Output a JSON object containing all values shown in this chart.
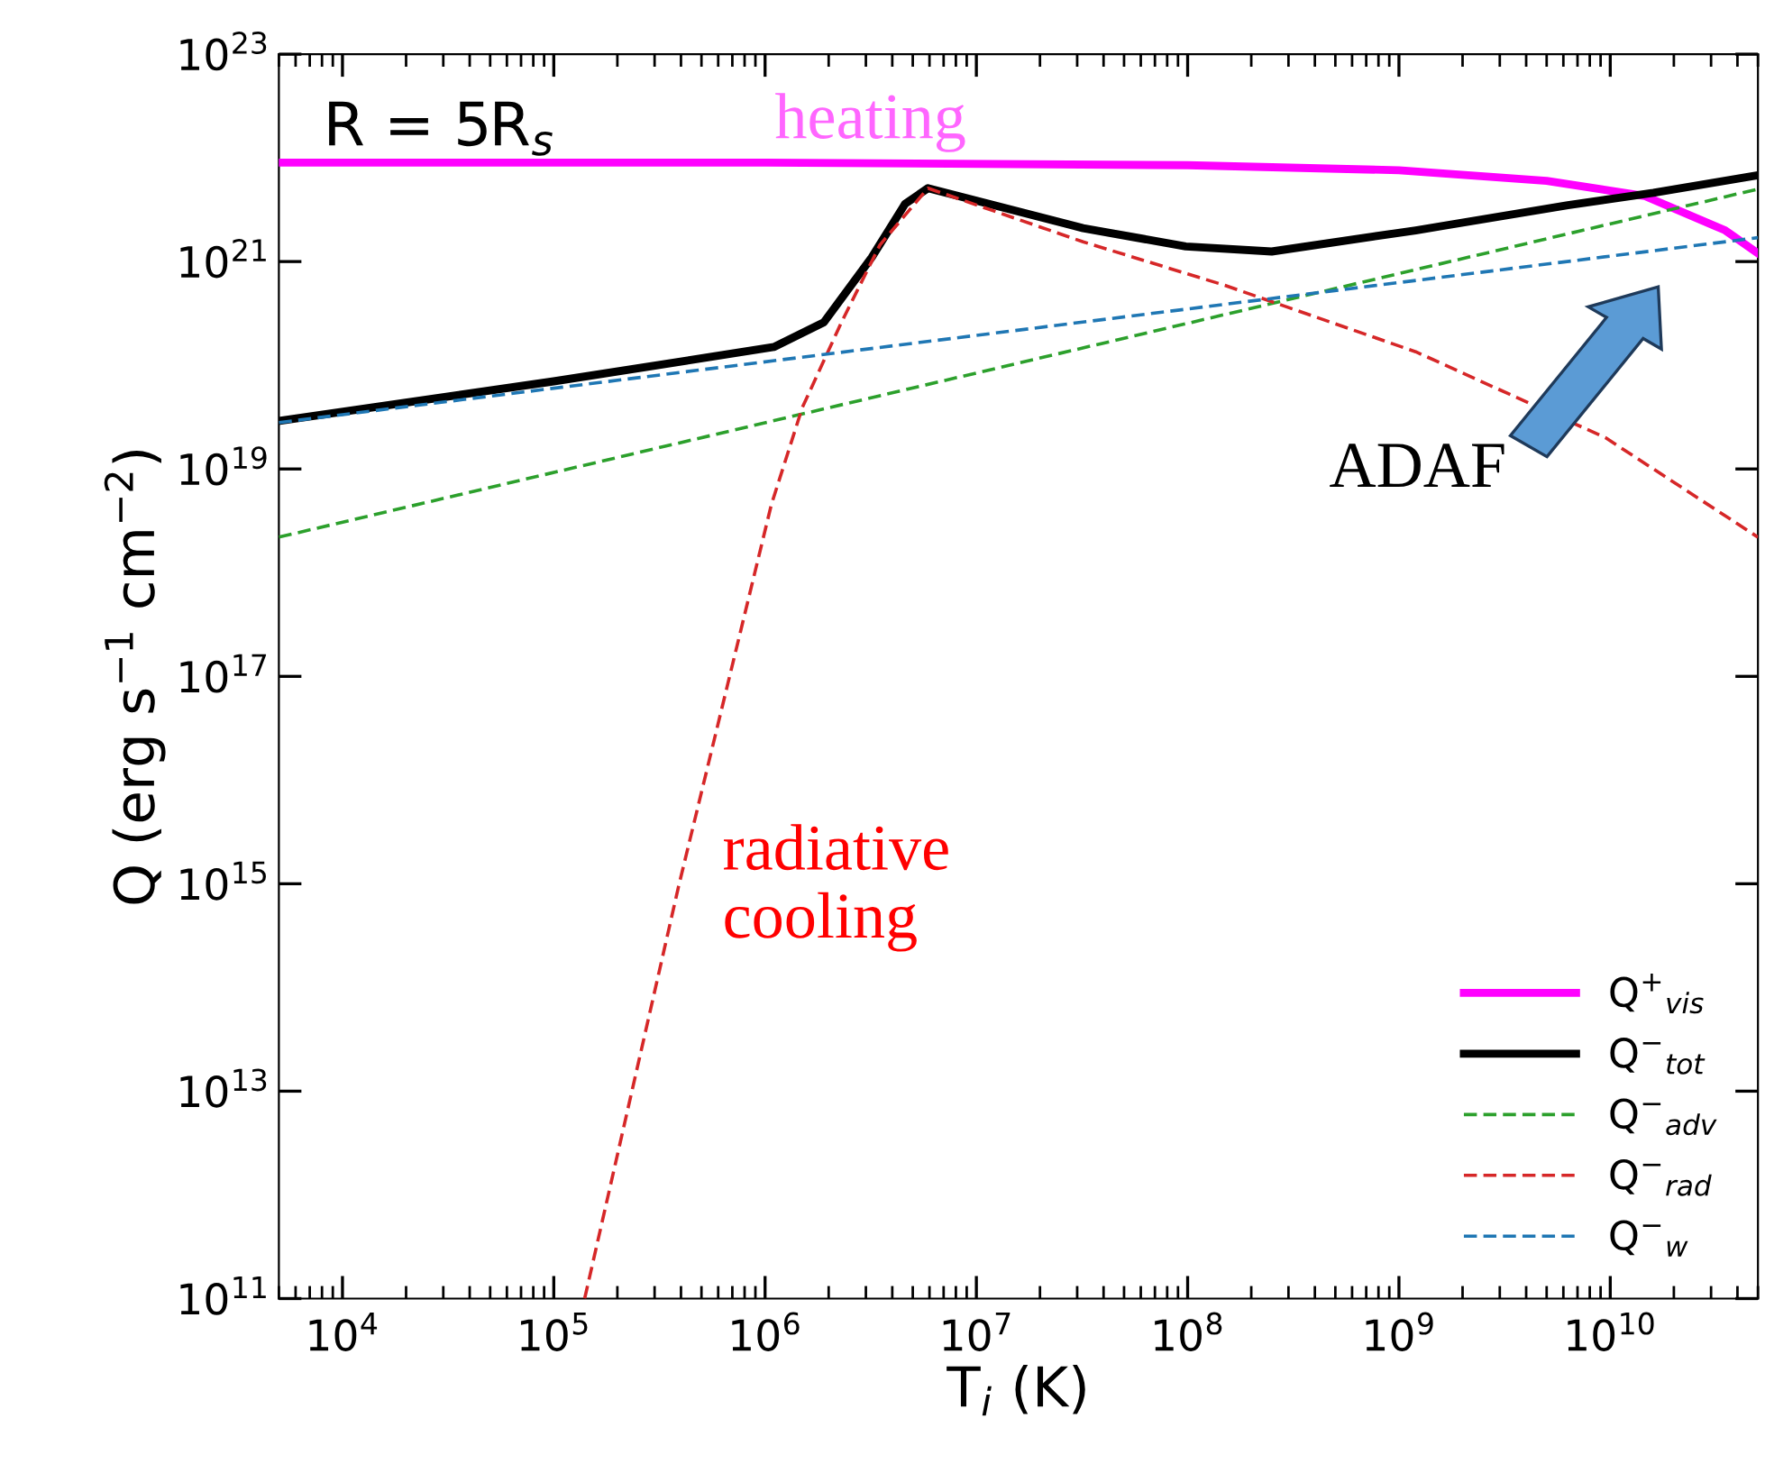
{
  "chart_data": {
    "type": "line",
    "xlabel": "T$_{i}$ (K)",
    "ylabel": "Q (erg s$^{−1}$ cm$^{−2}$)",
    "log": "xy",
    "xlim": [
      5000,
      50000000000
    ],
    "ylim": [
      100000000000.0,
      1e+23
    ],
    "xticks": [
      {
        "value": 10000.0,
        "label": "10$^{4}$"
      },
      {
        "value": 100000.0,
        "label": "10$^{5}$"
      },
      {
        "value": 1000000.0,
        "label": "10$^{6}$"
      },
      {
        "value": 10000000.0,
        "label": "10$^{7}$"
      },
      {
        "value": 100000000.0,
        "label": "10$^{8}$"
      },
      {
        "value": 1000000000.0,
        "label": "10$^{9}$"
      },
      {
        "value": 10000000000.0,
        "label": "10$^{10}$"
      }
    ],
    "yticks": [
      {
        "value": 100000000000.0,
        "label": "10$^{11}$"
      },
      {
        "value": 10000000000000.0,
        "label": "10$^{13}$"
      },
      {
        "value": 1000000000000000.0,
        "label": "10$^{15}$"
      },
      {
        "value": 1e+17,
        "label": "10$^{17}$"
      },
      {
        "value": 1e+19,
        "label": "10$^{19}$"
      },
      {
        "value": 1e+21,
        "label": "10$^{21}$"
      },
      {
        "value": 1e+23,
        "label": "10$^{23}$"
      }
    ],
    "grid": false,
    "legend": "bottom right",
    "marker": "none",
    "series": [
      {
        "name": "Q$^{+}$$_{vis}$",
        "color": "#ff00ff",
        "line_style": "solid",
        "x": [
          5000.0,
          1000000.0,
          100000000.0,
          1000000000.0,
          5000000000.0,
          14500000000.0,
          35000000000.0,
          50000000000.0
        ],
        "values": [
          9e+21,
          9e+21,
          8.5e+21,
          7.6e+21,
          6e+21,
          4.3e+21,
          2e+21,
          1.2e+21
        ]
      },
      {
        "name": "Q$^{−}$$_{tot}$",
        "color": "#000000",
        "line_style": "solid",
        "x": [
          5000.0,
          100000.0,
          1100000.0,
          1900000.0,
          3200000.0,
          4600000.0,
          5900000.0,
          32000000.0,
          98000000.0,
          250000000.0,
          1200000000.0,
          6300000000.0,
          16000000000.0,
          50000000000.0
        ],
        "values": [
          2.9e+19,
          7e+19,
          1.5e+20,
          2.6e+20,
          1.1e+21,
          3.6e+21,
          5.1e+21,
          2.1e+21,
          1.4e+21,
          1.25e+21,
          2e+21,
          3.5e+21,
          4.6e+21,
          6.8e+21
        ]
      },
      {
        "name": "Q$^{−}$$_{adv}$",
        "color": "#2ca02c",
        "line_style": "dashed",
        "x": [
          5000.0,
          50000000000.0
        ],
        "values": [
          2.2e+18,
          5e+21
        ]
      },
      {
        "name": "Q$^{−}$$_{rad}$",
        "color": "#d62728",
        "line_style": "dashed",
        "x": [
          140000.0,
          390000.0,
          1070000.0,
          1500000.0,
          2300000.0,
          3500000.0,
          5900000.0,
          32000000.0,
          150000000.0,
          1200000000.0,
          9500000000.0,
          50000000000.0
        ],
        "values": [
          100000000000.0,
          950000000000000.0,
          4.5e+18,
          3.9e+19,
          2.6e+20,
          1.45e+21,
          5.1e+21,
          1.55e+21,
          5.9e+20,
          1.35e+20,
          2e+19,
          2.2e+18
        ]
      },
      {
        "name": "Q$^{−}$$_{w}$",
        "color": "#1f77b4",
        "line_style": "dashed",
        "x": [
          5000.0,
          50000000000.0
        ],
        "values": [
          2.8e+19,
          1.7e+21
        ]
      }
    ],
    "annotations": [
      "R = 5R$_{s}$",
      "heating",
      "radiative\ncooling",
      "ADAF"
    ]
  }
}
